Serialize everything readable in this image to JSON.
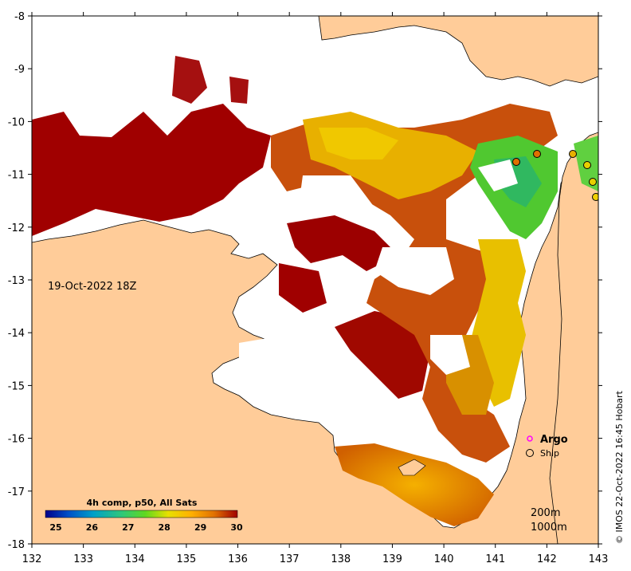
{
  "map": {
    "timestamp": "19-Oct-2022 18Z",
    "x_ticks": [
      "132",
      "133",
      "134",
      "135",
      "136",
      "137",
      "138",
      "139",
      "140",
      "141",
      "142",
      "143"
    ],
    "y_ticks": [
      "-8",
      "-9",
      "-10",
      "-11",
      "-12",
      "-13",
      "-14",
      "-15",
      "-16",
      "-17",
      "-18"
    ],
    "lon_range": [
      132,
      143
    ],
    "lat_range": [
      -18,
      -8
    ],
    "land_color": "#FFCC99",
    "nodata_color": "#FFFFFF"
  },
  "legend": {
    "argo_label": "Argo",
    "ship_label": "Ship",
    "argo_color": "#FF00FF"
  },
  "colorbar": {
    "title": "4h comp, p50, All Sats",
    "labels": [
      "25",
      "26",
      "27",
      "28",
      "29",
      "30"
    ],
    "range": [
      25,
      30
    ],
    "colors": [
      "#00008B",
      "#0050C8",
      "#00A0C8",
      "#30C878",
      "#60D820",
      "#E8E000",
      "#FFB000",
      "#E07000",
      "#A00000"
    ]
  },
  "isobaths": {
    "label_200": "200m",
    "label_1000": "1000m"
  },
  "credit": "© IMOS 22-Oct-2022 16:45 Hobart"
}
